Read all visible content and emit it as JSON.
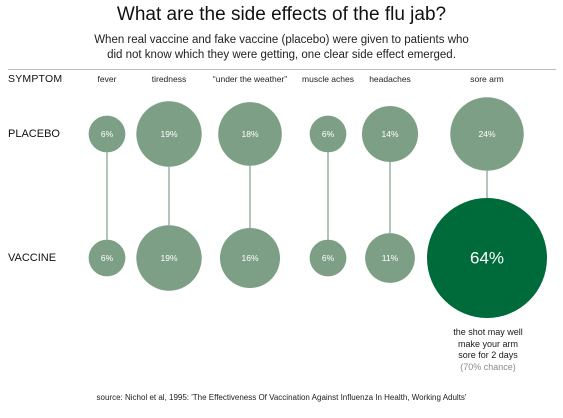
{
  "title": "What are the side effects of the flu jab?",
  "subtitle_lines": [
    "When real vaccine and fake vaccine (placebo) were given to patients who",
    "did not know which they were getting, one clear side effect emerged."
  ],
  "symptom_header": "SYMPTOM",
  "note": {
    "lines": [
      "the shot may well",
      "make your arm",
      "sore for 2 days"
    ],
    "chance": "(70% chance)"
  },
  "source": "source: Nichol et al, 1995: 'The Effectiveness Of Vaccination Against Influenza In Health, Working Adults'",
  "colors": {
    "bubble": "#7d9f86",
    "highlight": "#006b3a",
    "connector": "#7d9f86",
    "rule": "#bdbdbd"
  },
  "chart_data": {
    "type": "bubble-matrix",
    "categories": [
      "fever",
      "tiredness",
      "“under the weather”",
      "muscle aches",
      "headaches",
      "sore arm"
    ],
    "series": [
      {
        "name": "PLACEBO",
        "values": [
          6,
          19,
          18,
          6,
          14,
          24
        ],
        "labels": [
          "6%",
          "19%",
          "18%",
          "6%",
          "14%",
          "24%"
        ]
      },
      {
        "name": "VACCINE",
        "values": [
          6,
          19,
          16,
          6,
          11,
          64
        ],
        "labels": [
          "6%",
          "19%",
          "16%",
          "6%",
          "11%",
          "64%"
        ]
      }
    ],
    "unit": "%",
    "highlight": {
      "series": "VACCINE",
      "category": "sore arm"
    }
  }
}
